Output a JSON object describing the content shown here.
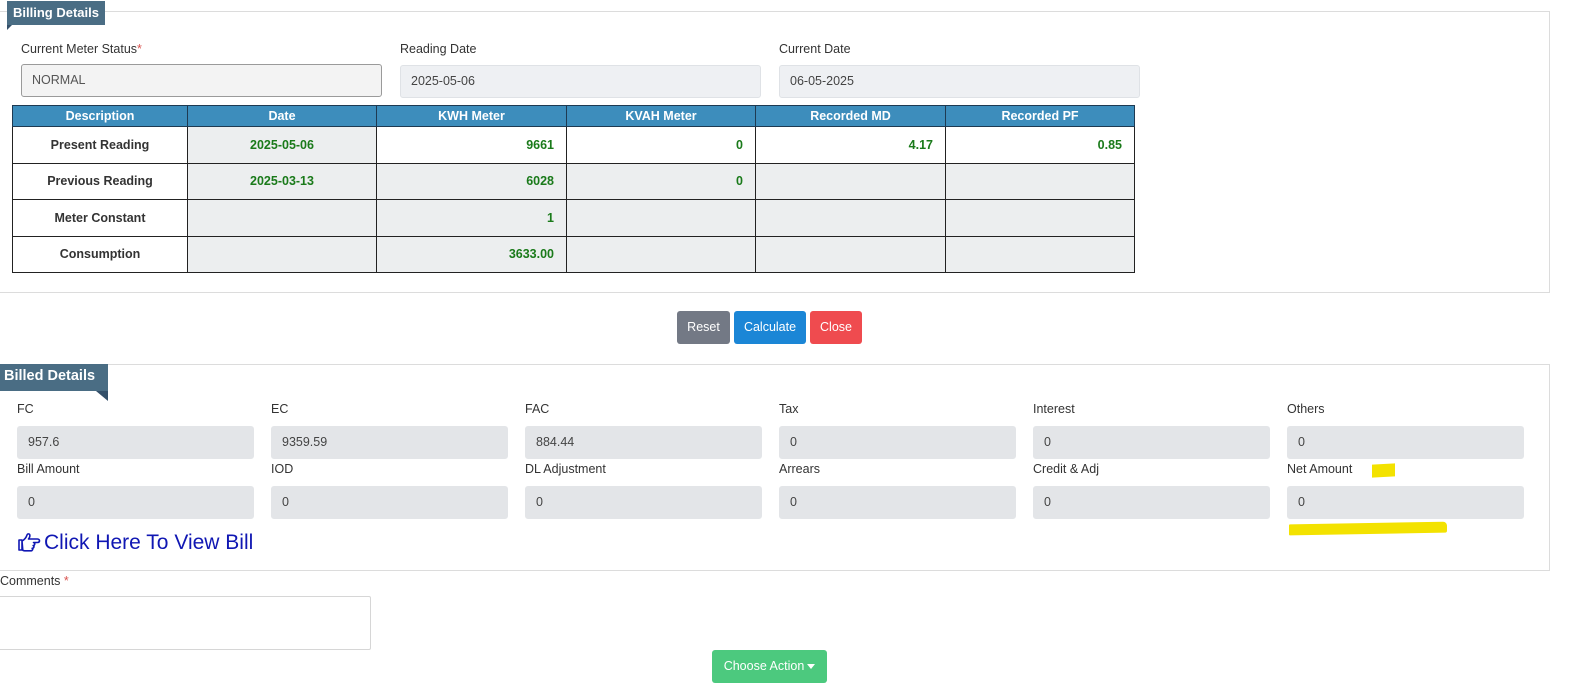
{
  "billing": {
    "title": "Billing Details",
    "meter_status_label": "Current Meter Status",
    "required_mark": "*",
    "meter_status_value": "NORMAL",
    "reading_date_label": "Reading Date",
    "reading_date_value": "2025-05-06",
    "current_date_label": "Current Date",
    "current_date_value": "06-05-2025"
  },
  "table": {
    "headers": [
      "Description",
      "Date",
      "KWH Meter",
      "KVAH Meter",
      "Recorded MD",
      "Recorded PF"
    ],
    "rows": [
      {
        "desc": "Present Reading",
        "date": "2025-05-06",
        "kwh": "9661",
        "kvah": "0",
        "md": "4.17",
        "pf": "0.85"
      },
      {
        "desc": "Previous Reading",
        "date": "2025-03-13",
        "kwh": "6028",
        "kvah": "0",
        "md": "",
        "pf": ""
      },
      {
        "desc": "Meter Constant",
        "date": "",
        "kwh": "1",
        "kvah": "",
        "md": "",
        "pf": ""
      },
      {
        "desc": "Consumption",
        "date": "",
        "kwh": "3633.00",
        "kvah": "",
        "md": "",
        "pf": ""
      }
    ]
  },
  "actions": {
    "reset": "Reset",
    "calculate": "Calculate",
    "close": "Close"
  },
  "billed": {
    "title": "Billed Details",
    "fields": [
      {
        "label": "FC",
        "value": "957.6"
      },
      {
        "label": "EC",
        "value": "9359.59"
      },
      {
        "label": "FAC",
        "value": "884.44"
      },
      {
        "label": "Tax",
        "value": "0"
      },
      {
        "label": "Interest",
        "value": "0"
      },
      {
        "label": "Others",
        "value": "0"
      },
      {
        "label": "Bill Amount",
        "value": "0"
      },
      {
        "label": "IOD",
        "value": "0"
      },
      {
        "label": "DL Adjustment",
        "value": "0"
      },
      {
        "label": "Arrears",
        "value": "0"
      },
      {
        "label": "Credit & Adj",
        "value": "0"
      },
      {
        "label": "Net Amount",
        "value": "0"
      }
    ],
    "view_bill_link": "Click Here To View Bill"
  },
  "comments": {
    "label": "Comments",
    "required_mark": "*",
    "value": ""
  },
  "choose_action": "Choose Action",
  "icons": {
    "view_bill": "hand-pointing-right-icon",
    "dropdown": "caret-down-icon"
  },
  "colors": {
    "header_blue": "#3d8dbc",
    "value_green": "#1a7a1a",
    "tag_bg": "#4a6d84",
    "highlight": "#f3e200"
  }
}
